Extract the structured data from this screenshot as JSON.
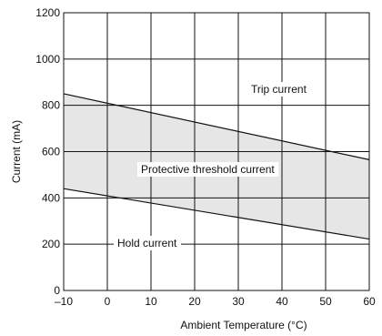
{
  "chart_data": {
    "type": "area",
    "xlabel": "Ambient Temperature (°C)",
    "ylabel": "Current (mA)",
    "xlim": [
      -10,
      60
    ],
    "ylim": [
      0,
      1200
    ],
    "xticks": [
      "–10",
      "0",
      "10",
      "20",
      "30",
      "40",
      "50",
      "60"
    ],
    "yticks": [
      "0",
      "200",
      "400",
      "600",
      "800",
      "1000",
      "1200"
    ],
    "grid": true,
    "series": [
      {
        "name": "Trip current",
        "x": [
          -10,
          60
        ],
        "values": [
          850,
          565
        ]
      },
      {
        "name": "Hold current",
        "x": [
          -10,
          60
        ],
        "values": [
          440,
          222
        ]
      }
    ],
    "band": {
      "label": "Protective threshold current",
      "fill": "#e6e6e6"
    },
    "annotations": {
      "trip": "Trip current",
      "band": "Protective threshold current",
      "hold": "Hold current"
    },
    "colors": {
      "line": "#111111",
      "grid": "#111111",
      "band": "#e6e6e6"
    }
  }
}
